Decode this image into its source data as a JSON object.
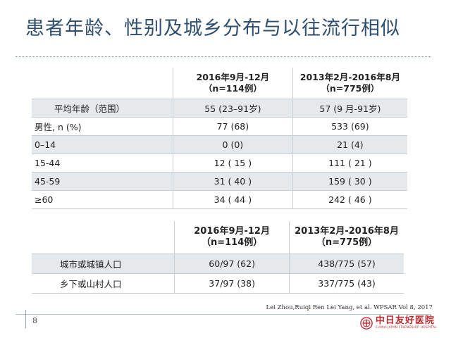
{
  "slide": {
    "title": "患者年龄、性别及城乡分布与以往流行相似",
    "page_number": "8",
    "citation": "Lei Zhou,Ruiqi Ren Lei Yang, et al. WPSAR Vol 8, 2017",
    "logo": {
      "name_cn": "中日友好医院",
      "name_en": "CHINA-JAPAN FRIENDSHIP HOSPITAL",
      "color": "#c0282d"
    }
  },
  "table1": {
    "headers": [
      {
        "line1": "2016年9月-12月",
        "line2": "（n=114例）"
      },
      {
        "line1": "2013年2月-2016年8月",
        "line2": "（n=775例）"
      }
    ],
    "rows": [
      {
        "label": "平均年龄（范围）",
        "v1": "55 (23–91岁)",
        "v2": "57 (9 月-91岁)"
      },
      {
        "label": "男性, n (%)",
        "v1": "77 (68)",
        "v2": "533 (69)"
      },
      {
        "label": "0–14",
        "v1": "0 (0)",
        "v2": "21 (4)"
      },
      {
        "label": "15-44",
        "v1": "12 ( 15 )",
        "v2": "111 ( 21 )"
      },
      {
        "label": "45-59",
        "v1": "31 ( 40 )",
        "v2": "159 ( 30 )"
      },
      {
        "label": "≥60",
        "v1": "34 ( 44 )",
        "v2": "242 ( 46 )"
      }
    ]
  },
  "table2": {
    "headers": [
      {
        "line1": "2016年9月-12月",
        "line2": "（n=114例）"
      },
      {
        "line1": "2013年2月-2016年8月",
        "line2": "（n=775例）"
      }
    ],
    "rows": [
      {
        "label": "城市或城镇人口",
        "v1": "60/97 (62)",
        "v2": "438/775 (57)"
      },
      {
        "label": "乡下或山村人口",
        "v1": "37/97 (38)",
        "v2": "337/775 (43)"
      }
    ]
  }
}
